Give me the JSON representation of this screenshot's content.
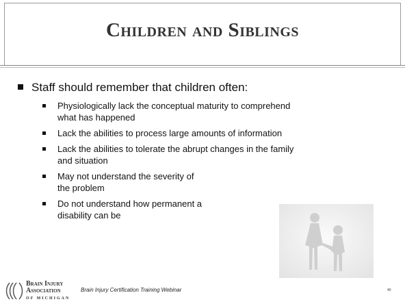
{
  "slide": {
    "title": "Children and Siblings",
    "bullet": "Staff should remember that children often:",
    "sub_bullets": [
      [
        "Physiologically lack the conceptual maturity to comprehend",
        "what has happened"
      ],
      [
        "Lack the abilities to process large amounts of information"
      ],
      [
        "Lack the abilities to tolerate the abrupt changes in the family",
        "and situation"
      ],
      [
        "May not understand the severity of",
        "the problem"
      ],
      [
        "Do not understand how permanent a",
        "disability can be"
      ]
    ],
    "logo": [
      "Brain Injury",
      "Association",
      "of Michigan"
    ],
    "footer": "Brain Injury Certification Training Webinar",
    "page_number": "40"
  }
}
